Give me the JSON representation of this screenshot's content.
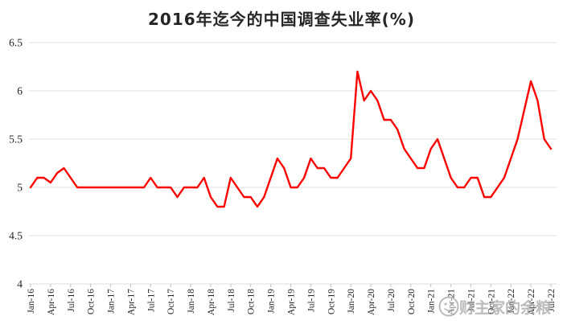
{
  "title": "2016年迄今的中国调查失业率(%)",
  "watermark": {
    "text": "财主家的余粮",
    "logo": "coin-face-logo"
  },
  "colors": {
    "background": "#ffffff",
    "line": "#fe0000",
    "grid": "#dedede",
    "tick": "#bfbfbf",
    "axis_text": "#262626",
    "title_text": "#262626",
    "watermark": "#ababab"
  },
  "chart_data": {
    "type": "line",
    "title": "2016年迄今的中国调查失业率(%)",
    "series_name": "中国调查失业率(%)",
    "x": [
      "Jan-16",
      "Feb-16",
      "Mar-16",
      "Apr-16",
      "May-16",
      "Jun-16",
      "Jul-16",
      "Aug-16",
      "Sep-16",
      "Oct-16",
      "Nov-16",
      "Dec-16",
      "Jan-17",
      "Feb-17",
      "Mar-17",
      "Apr-17",
      "May-17",
      "Jun-17",
      "Jul-17",
      "Aug-17",
      "Sep-17",
      "Oct-17",
      "Nov-17",
      "Dec-17",
      "Jan-18",
      "Feb-18",
      "Mar-18",
      "Apr-18",
      "May-18",
      "Jun-18",
      "Jul-18",
      "Aug-18",
      "Sep-18",
      "Oct-18",
      "Nov-18",
      "Dec-18",
      "Jan-19",
      "Feb-19",
      "Mar-19",
      "Apr-19",
      "May-19",
      "Jun-19",
      "Jul-19",
      "Aug-19",
      "Sep-19",
      "Oct-19",
      "Nov-19",
      "Dec-19",
      "Jan-20",
      "Feb-20",
      "Mar-20",
      "Apr-20",
      "May-20",
      "Jun-20",
      "Jul-20",
      "Aug-20",
      "Sep-20",
      "Oct-20",
      "Nov-20",
      "Dec-20",
      "Jan-21",
      "Feb-21",
      "Mar-21",
      "Apr-21",
      "May-21",
      "Jun-21",
      "Jul-21",
      "Aug-21",
      "Sep-21",
      "Oct-21",
      "Nov-21",
      "Dec-21",
      "Jan-22",
      "Feb-22",
      "Mar-22",
      "Apr-22",
      "May-22",
      "Jun-22",
      "Jul-22"
    ],
    "values": [
      5.0,
      5.1,
      5.1,
      5.05,
      5.15,
      5.2,
      5.1,
      5.0,
      5.0,
      5.0,
      5.0,
      5.0,
      5.0,
      5.0,
      5.0,
      5.0,
      5.0,
      5.0,
      5.1,
      5.0,
      5.0,
      5.0,
      4.9,
      5.0,
      5.0,
      5.0,
      5.1,
      4.9,
      4.8,
      4.8,
      5.1,
      5.0,
      4.9,
      4.9,
      4.8,
      4.9,
      5.1,
      5.3,
      5.2,
      5.0,
      5.0,
      5.1,
      5.3,
      5.2,
      5.2,
      5.1,
      5.1,
      5.2,
      5.3,
      6.2,
      5.9,
      6.0,
      5.9,
      5.7,
      5.7,
      5.6,
      5.4,
      5.3,
      5.2,
      5.2,
      5.4,
      5.5,
      5.3,
      5.1,
      5.0,
      5.0,
      5.1,
      5.1,
      4.9,
      4.9,
      5.0,
      5.1,
      5.3,
      5.5,
      5.8,
      6.1,
      5.9,
      5.5,
      5.4
    ],
    "ylim": [
      4,
      6.5
    ],
    "yticks": [
      6.5,
      6,
      5.5,
      5,
      4.5,
      4
    ],
    "ytick_labels": [
      "6.5",
      "6",
      "5.5",
      "5",
      "4.5",
      "4"
    ],
    "xtick_every": 3,
    "xtick_labels": [
      "Jan-16",
      "Apr-16",
      "Jul-16",
      "Oct-16",
      "Jan-17",
      "Apr-17",
      "Jul-17",
      "Oct-17",
      "Jan-18",
      "Apr-18",
      "Jul-18",
      "Oct-18",
      "Jan-19",
      "Apr-19",
      "Jul-19",
      "Oct-19",
      "Jan-20",
      "Apr-20",
      "Jul-20",
      "Oct-20",
      "Jan-21",
      "Apr-21",
      "Jul-21",
      "Oct-21",
      "Jan-22",
      "Apr-22",
      "Jul-22"
    ],
    "grid": "horizontal",
    "legend": "none",
    "line_color": "#fe0000"
  }
}
